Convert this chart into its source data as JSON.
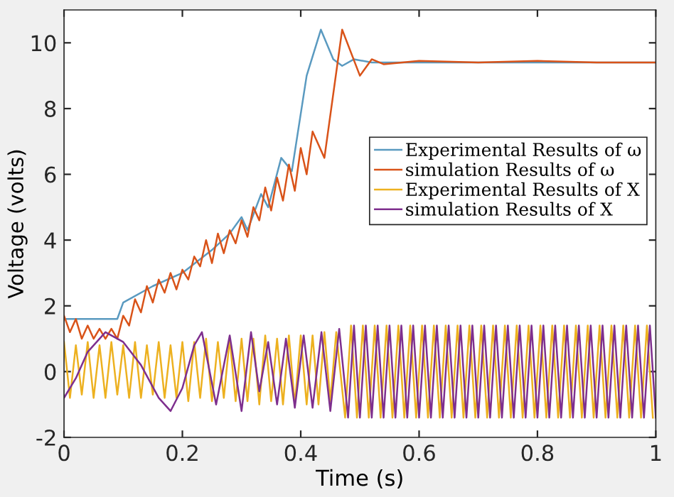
{
  "chart_data": {
    "type": "line",
    "xlabel": "Time (s)",
    "ylabel": "Voltage (volts)",
    "xlim": [
      0,
      1
    ],
    "xticks": [
      0,
      0.2,
      0.4,
      0.6,
      0.8,
      1
    ],
    "ylim": [
      -2,
      11
    ],
    "yticks": [
      -2,
      0,
      2,
      4,
      6,
      8,
      10
    ],
    "grid": false,
    "legend": "right",
    "marker": "none",
    "line_style": "solid",
    "series": [
      {
        "name": "Experimental Results of ω",
        "color": "#5a9ac0",
        "x": [
          0,
          0.09,
          0.1,
          0.15,
          0.2,
          0.25,
          0.28,
          0.3,
          0.31,
          0.333,
          0.345,
          0.367,
          0.385,
          0.41,
          0.434,
          0.455,
          0.47,
          0.49,
          0.52,
          1.0
        ],
        "values": [
          1.6,
          1.6,
          2.1,
          2.6,
          3.0,
          3.7,
          4.2,
          4.7,
          4.3,
          5.4,
          5.0,
          6.5,
          6.1,
          9.0,
          10.4,
          9.5,
          9.3,
          9.5,
          9.4,
          9.4
        ]
      },
      {
        "name": "simulation Results of ω",
        "color": "#d95319",
        "x": [
          0,
          0.01,
          0.02,
          0.03,
          0.04,
          0.05,
          0.06,
          0.07,
          0.08,
          0.09,
          0.1,
          0.11,
          0.12,
          0.13,
          0.14,
          0.15,
          0.16,
          0.17,
          0.18,
          0.19,
          0.2,
          0.21,
          0.22,
          0.23,
          0.24,
          0.25,
          0.26,
          0.27,
          0.28,
          0.29,
          0.3,
          0.31,
          0.32,
          0.33,
          0.34,
          0.35,
          0.36,
          0.37,
          0.38,
          0.39,
          0.4,
          0.41,
          0.42,
          0.44,
          0.47,
          0.5,
          0.52,
          0.54,
          0.6,
          0.7,
          0.8,
          0.9,
          1.0
        ],
        "values": [
          1.7,
          1.2,
          1.6,
          1.0,
          1.4,
          1.0,
          1.3,
          1.0,
          1.3,
          1.0,
          1.7,
          1.4,
          2.2,
          1.8,
          2.6,
          2.1,
          2.8,
          2.4,
          3.0,
          2.5,
          3.1,
          2.8,
          3.5,
          3.2,
          4.0,
          3.3,
          4.2,
          3.6,
          4.3,
          3.9,
          4.6,
          4.1,
          5.0,
          4.6,
          5.6,
          4.9,
          5.9,
          5.2,
          6.3,
          5.5,
          6.8,
          6.0,
          7.3,
          6.5,
          10.4,
          9.0,
          9.5,
          9.35,
          9.45,
          9.4,
          9.45,
          9.4,
          9.4
        ]
      },
      {
        "name": "Experimental Results of X",
        "color": "#edb120",
        "x": [
          0,
          0.01,
          0.02,
          0.03,
          0.04,
          0.05,
          0.06,
          0.07,
          0.08,
          0.09,
          0.1,
          0.11,
          0.12,
          0.13,
          0.14,
          0.15,
          0.16,
          0.17,
          0.18,
          0.19,
          0.2,
          0.21,
          0.22,
          0.23,
          0.24,
          0.25,
          0.26,
          0.27,
          0.28,
          0.29,
          0.3,
          0.31,
          0.32,
          0.33,
          0.34,
          0.35,
          0.36,
          0.37,
          0.38,
          0.39,
          0.4,
          0.41,
          0.42,
          0.43,
          0.44,
          0.45,
          0.46,
          0.475,
          0.485,
          0.495,
          0.505,
          0.515,
          0.525,
          0.535,
          0.545,
          0.555,
          0.565,
          0.575,
          0.585,
          0.595,
          0.605,
          0.615,
          0.625,
          0.635,
          0.645,
          0.655,
          0.665,
          0.675,
          0.685,
          0.695,
          0.705,
          0.715,
          0.725,
          0.735,
          0.745,
          0.755,
          0.765,
          0.775,
          0.785,
          0.795,
          0.805,
          0.815,
          0.825,
          0.835,
          0.845,
          0.855,
          0.865,
          0.875,
          0.885,
          0.895,
          0.905,
          0.915,
          0.925,
          0.935,
          0.945,
          0.955,
          0.965,
          0.975,
          0.985,
          0.995
        ],
        "values": [
          0.9,
          -0.8,
          0.8,
          -0.7,
          0.9,
          -0.8,
          0.8,
          -0.8,
          0.9,
          -0.7,
          0.8,
          -0.8,
          0.9,
          -0.8,
          0.8,
          -0.7,
          0.9,
          -0.8,
          0.8,
          -0.8,
          0.9,
          -0.9,
          0.9,
          -0.8,
          1.0,
          -0.9,
          0.9,
          -0.8,
          1.0,
          -0.9,
          1.0,
          -0.9,
          1.0,
          -1.0,
          1.1,
          -0.9,
          1.0,
          -1.0,
          1.1,
          -1.0,
          1.1,
          -1.0,
          1.1,
          -1.0,
          1.2,
          -0.9,
          1.2,
          -1.4,
          1.4,
          -1.4,
          1.4,
          -1.4,
          1.4,
          -1.4,
          1.4,
          -1.4,
          1.4,
          -1.4,
          1.4,
          -1.4,
          1.4,
          -1.4,
          1.4,
          -1.4,
          1.4,
          -1.4,
          1.4,
          -1.4,
          1.4,
          -1.4,
          1.4,
          -1.4,
          1.4,
          -1.4,
          1.4,
          -1.4,
          1.4,
          -1.4,
          1.4,
          -1.4,
          1.4,
          -1.4,
          1.4,
          -1.4,
          1.4,
          -1.4,
          1.4,
          -1.4,
          1.4,
          -1.4,
          1.4,
          -1.4,
          1.4,
          -1.4,
          1.4,
          -1.4,
          1.4,
          -1.4,
          1.4,
          -1.4
        ]
      },
      {
        "name": "simulation Results of X",
        "color": "#7e2f8e",
        "x": [
          0,
          0.02,
          0.04,
          0.07,
          0.1,
          0.13,
          0.16,
          0.18,
          0.2,
          0.22,
          0.233,
          0.257,
          0.28,
          0.3,
          0.316,
          0.33,
          0.345,
          0.36,
          0.375,
          0.39,
          0.405,
          0.42,
          0.435,
          0.45,
          0.465,
          0.48,
          0.49,
          0.5,
          0.51,
          0.52,
          0.53,
          0.54,
          0.55,
          0.56,
          0.57,
          0.58,
          0.59,
          0.6,
          0.61,
          0.62,
          0.63,
          0.64,
          0.65,
          0.66,
          0.67,
          0.68,
          0.69,
          0.7,
          0.71,
          0.72,
          0.73,
          0.74,
          0.75,
          0.76,
          0.77,
          0.78,
          0.79,
          0.8,
          0.81,
          0.82,
          0.83,
          0.84,
          0.85,
          0.86,
          0.87,
          0.88,
          0.89,
          0.9,
          0.91,
          0.92,
          0.93,
          0.94,
          0.95,
          0.96,
          0.97,
          0.98,
          0.99,
          1.0
        ],
        "values": [
          -0.8,
          -0.2,
          0.6,
          1.2,
          0.9,
          0.2,
          -0.8,
          -1.2,
          -0.5,
          0.8,
          1.2,
          -1.0,
          1.1,
          -1.2,
          1.2,
          -0.6,
          0.9,
          -1.0,
          1.0,
          -1.1,
          1.1,
          -1.1,
          1.2,
          -1.2,
          1.3,
          -1.4,
          1.4,
          -1.4,
          1.4,
          -1.4,
          1.4,
          -1.4,
          1.4,
          -1.4,
          1.4,
          -1.4,
          1.4,
          -1.4,
          1.4,
          -1.4,
          1.4,
          -1.4,
          1.4,
          -1.4,
          1.4,
          -1.4,
          1.4,
          -1.4,
          1.4,
          -1.4,
          1.4,
          -1.4,
          1.4,
          -1.4,
          1.4,
          -1.4,
          1.4,
          -1.4,
          1.4,
          -1.4,
          1.4,
          -1.4,
          1.4,
          -1.4,
          1.4,
          -1.4,
          1.4,
          -1.4,
          1.4,
          -1.4,
          1.4,
          -1.4,
          1.4,
          -1.4,
          1.4,
          -1.4,
          1.4,
          -1.4
        ]
      }
    ]
  }
}
